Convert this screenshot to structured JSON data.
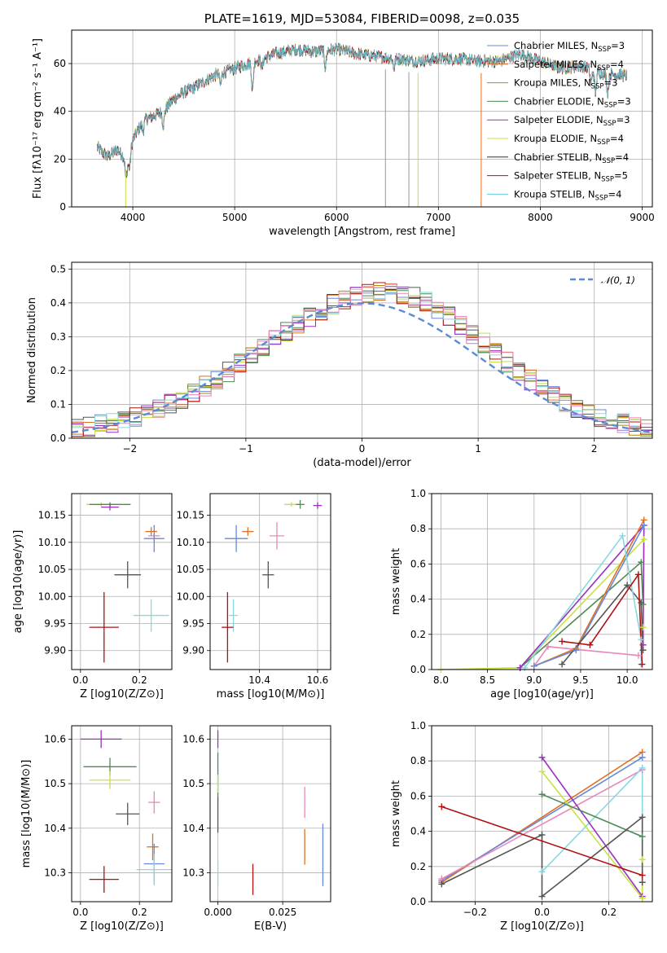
{
  "chart_data": [
    {
      "type": "line",
      "title": "PLATE=1619, MJD=53084, FIBERID=0098, z=0.035",
      "xlabel": "wavelength [Angstrom, rest frame]",
      "ylabel": "Flux [fλ10⁻¹⁷ erg cm⁻² s⁻¹ A⁻¹]",
      "xlim": [
        3400,
        9100
      ],
      "ylim": [
        0,
        74
      ],
      "xticks": [
        "4000",
        "5000",
        "6000",
        "7000",
        "8000",
        "9000"
      ],
      "yticks": [
        "0",
        "20",
        "40",
        "60"
      ],
      "legend_position": "upper-right",
      "series": [
        {
          "name": "Chabrier MILES, N_SSP=3",
          "color": "#6688dd"
        },
        {
          "name": "Salpeter MILES, N_SSP=4",
          "color": "#e07020"
        },
        {
          "name": "Kroupa MILES, N_SSP=3",
          "color": "#b8860b"
        },
        {
          "name": "Chabrier ELODIE, N_SSP=3",
          "color": "#4a8a55"
        },
        {
          "name": "Salpeter ELODIE, N_SSP=3",
          "color": "#9b30c0"
        },
        {
          "name": "Kroupa ELODIE, N_SSP=4",
          "color": "#c8e040"
        },
        {
          "name": "Chabrier STELIB, N_SSP=4",
          "color": "#333333"
        },
        {
          "name": "Salpeter STELIB, N_SSP=5",
          "color": "#b01010"
        },
        {
          "name": "Kroupa STELIB, N_SSP=4",
          "color": "#66ccdd"
        }
      ],
      "continuum_points": [
        [
          3650,
          25
        ],
        [
          3750,
          21
        ],
        [
          3850,
          24
        ],
        [
          3950,
          19
        ],
        [
          4000,
          28
        ],
        [
          4100,
          36
        ],
        [
          4200,
          38
        ],
        [
          4300,
          40
        ],
        [
          4400,
          45
        ],
        [
          4500,
          48
        ],
        [
          4600,
          50
        ],
        [
          4800,
          55
        ],
        [
          5000,
          58
        ],
        [
          5200,
          61
        ],
        [
          5400,
          64
        ],
        [
          5600,
          66
        ],
        [
          5800,
          65
        ],
        [
          6000,
          66
        ],
        [
          6200,
          64
        ],
        [
          6400,
          63
        ],
        [
          6600,
          62
        ],
        [
          6800,
          61
        ],
        [
          7000,
          62
        ],
        [
          7200,
          62
        ],
        [
          7400,
          61
        ],
        [
          7600,
          61
        ],
        [
          7800,
          64
        ],
        [
          8000,
          61
        ],
        [
          8200,
          58
        ],
        [
          8400,
          59
        ],
        [
          8600,
          56
        ],
        [
          8850,
          55
        ]
      ],
      "absorption_features": [
        [
          3934,
          8
        ],
        [
          3969,
          6
        ],
        [
          4101,
          4
        ],
        [
          4300,
          6
        ],
        [
          4861,
          5
        ],
        [
          5175,
          12
        ],
        [
          5270,
          4
        ],
        [
          5890,
          7
        ],
        [
          6563,
          4
        ],
        [
          8498,
          6
        ],
        [
          8542,
          9
        ],
        [
          8662,
          8
        ]
      ]
    },
    {
      "type": "line",
      "xlabel": "(data-model)/error",
      "ylabel": "Normed distribution",
      "xlim": [
        -2.5,
        2.5
      ],
      "ylim": [
        0,
        0.52
      ],
      "xticks": [
        "−2",
        "−1",
        "0",
        "1",
        "2"
      ],
      "yticks": [
        "0.0",
        "0.1",
        "0.2",
        "0.3",
        "0.4",
        "0.5"
      ],
      "legend": "𝒩(0, 1)",
      "legend_position": "upper-right",
      "bin_width": 0.1,
      "base_profile": {
        "center": 0.2,
        "left_sigma": 1.05,
        "right_sigma": 0.9,
        "peak": 0.42
      }
    },
    {
      "type": "scatter",
      "xlabel": "Z [log10(Z/Z⊙)]",
      "ylabel": "age  [log10(age/yr)]",
      "xlim": [
        -0.03,
        0.31
      ],
      "ylim": [
        9.865,
        10.19
      ],
      "xticks": [
        "0.0",
        "0.2"
      ],
      "yticks": [
        "9.90",
        "9.95",
        "10.00",
        "10.05",
        "10.10",
        "10.15"
      ],
      "points": [
        {
          "x": 0.07,
          "xerr": 0.05,
          "y": 10.17,
          "yerr": 0.004,
          "color": "#c8e040"
        },
        {
          "x": 0.1,
          "xerr": 0.07,
          "y": 10.17,
          "yerr": 0.004,
          "color": "#4a8a55"
        },
        {
          "x": 0.1,
          "xerr": 0.03,
          "y": 10.165,
          "yerr": 0.006,
          "color": "#9b30c0"
        },
        {
          "x": 0.24,
          "xerr": 0.02,
          "y": 10.12,
          "yerr": 0.008,
          "color": "#e07020"
        },
        {
          "x": 0.25,
          "xerr": 0.02,
          "y": 10.112,
          "yerr": 0.01,
          "color": "#e888b8"
        },
        {
          "x": 0.25,
          "xerr": 0.035,
          "y": 10.107,
          "yerr": 0.025,
          "color": "#6688dd"
        },
        {
          "x": 0.16,
          "xerr": 0.045,
          "y": 10.04,
          "yerr": 0.025,
          "color": "#555555"
        },
        {
          "x": 0.24,
          "xerr": 0.06,
          "y": 9.965,
          "yerr": 0.03,
          "color": "#88d8e0"
        },
        {
          "x": 0.08,
          "xerr": 0.05,
          "y": 9.943,
          "yerr": 0.065,
          "color": "#b01010"
        }
      ]
    },
    {
      "type": "scatter",
      "xlabel": "mass [log10(M/M⊙)]",
      "ylabel": "",
      "xlim": [
        10.23,
        10.645
      ],
      "ylim": [
        9.865,
        10.19
      ],
      "xticks": [
        "10.4",
        "10.6"
      ],
      "yticks": [
        "9.90",
        "9.95",
        "10.00",
        "10.05",
        "10.10",
        "10.15"
      ],
      "points": [
        {
          "x": 10.51,
          "xerr": 0.025,
          "y": 10.17,
          "yerr": 0.004,
          "color": "#c8e040"
        },
        {
          "x": 10.54,
          "xerr": 0.015,
          "y": 10.17,
          "yerr": 0.008,
          "color": "#4a8a55"
        },
        {
          "x": 10.6,
          "xerr": 0.015,
          "y": 10.168,
          "yerr": 0.006,
          "color": "#9b30c0"
        },
        {
          "x": 10.36,
          "xerr": 0.02,
          "y": 10.12,
          "yerr": 0.008,
          "color": "#e07020"
        },
        {
          "x": 10.46,
          "xerr": 0.025,
          "y": 10.112,
          "yerr": 0.025,
          "color": "#e888b8"
        },
        {
          "x": 10.32,
          "xerr": 0.04,
          "y": 10.107,
          "yerr": 0.025,
          "color": "#6688dd"
        },
        {
          "x": 10.43,
          "xerr": 0.02,
          "y": 10.04,
          "yerr": 0.025,
          "color": "#555555"
        },
        {
          "x": 10.31,
          "xerr": 0.015,
          "y": 9.965,
          "yerr": 0.03,
          "color": "#88d8e0"
        },
        {
          "x": 10.29,
          "xerr": 0.02,
          "y": 9.943,
          "yerr": 0.065,
          "color": "#b01010"
        }
      ]
    },
    {
      "type": "line",
      "xlabel": "age  [log10(age/yr)]",
      "ylabel": "mass weight",
      "xlim": [
        7.9,
        10.27
      ],
      "ylim": [
        0,
        1
      ],
      "xticks": [
        "8.0",
        "8.5",
        "9.0",
        "9.5",
        "10.0"
      ],
      "yticks": [
        "0.0",
        "0.2",
        "0.4",
        "0.6",
        "0.8",
        "1.0"
      ],
      "series": [
        {
          "color": "#c8e040",
          "points": [
            [
              8.0,
              0.0
            ],
            [
              8.85,
              0.01
            ],
            [
              10.18,
              0.74
            ],
            [
              10.17,
              0.24
            ]
          ]
        },
        {
          "color": "#4a8a55",
          "points": [
            [
              8.85,
              0.01
            ],
            [
              10.15,
              0.61
            ],
            [
              10.17,
              0.37
            ]
          ]
        },
        {
          "color": "#9b30c0",
          "points": [
            [
              8.85,
              0.01
            ],
            [
              10.18,
              0.82
            ],
            [
              10.17,
              0.14
            ]
          ]
        },
        {
          "color": "#e07020",
          "points": [
            [
              9.0,
              0.02
            ],
            [
              9.45,
              0.12
            ],
            [
              10.18,
              0.85
            ]
          ]
        },
        {
          "color": "#e888b8",
          "points": [
            [
              9.0,
              0.02
            ],
            [
              9.15,
              0.13
            ],
            [
              10.12,
              0.08
            ]
          ]
        },
        {
          "color": "#6688dd",
          "points": [
            [
              9.0,
              0.02
            ],
            [
              9.45,
              0.11
            ],
            [
              10.18,
              0.82
            ]
          ]
        },
        {
          "color": "#555555",
          "points": [
            [
              9.3,
              0.03
            ],
            [
              10.0,
              0.48
            ],
            [
              10.15,
              0.38
            ],
            [
              10.17,
              0.11
            ]
          ]
        },
        {
          "color": "#88d8e0",
          "points": [
            [
              8.9,
              0.01
            ],
            [
              9.95,
              0.76
            ],
            [
              10.15,
              0.17
            ],
            [
              10.15,
              0.03
            ]
          ]
        },
        {
          "color": "#b01010",
          "points": [
            [
              9.3,
              0.16
            ],
            [
              9.6,
              0.14
            ],
            [
              10.12,
              0.54
            ],
            [
              10.16,
              0.03
            ]
          ]
        }
      ]
    },
    {
      "type": "scatter",
      "xlabel": "Z [log10(Z/Z⊙)]",
      "ylabel": "mass [log10(M/M⊙)]",
      "xlim": [
        -0.03,
        0.31
      ],
      "ylim": [
        10.235,
        10.63
      ],
      "xticks": [
        "0.0",
        "0.2"
      ],
      "yticks": [
        "10.3",
        "10.4",
        "10.5",
        "10.6"
      ],
      "points": [
        {
          "x": 0.07,
          "xerr": 0.07,
          "y": 10.6,
          "yerr": 0.02,
          "color": "#9b30c0"
        },
        {
          "x": 0.1,
          "xerr": 0.09,
          "y": 10.538,
          "yerr": 0.02,
          "color": "#4a8a55"
        },
        {
          "x": 0.1,
          "xerr": 0.07,
          "y": 10.508,
          "yerr": 0.02,
          "color": "#c8e040"
        },
        {
          "x": 0.16,
          "xerr": 0.04,
          "y": 10.432,
          "yerr": 0.025,
          "color": "#555555"
        },
        {
          "x": 0.25,
          "xerr": 0.02,
          "y": 10.458,
          "yerr": 0.025,
          "color": "#e888b8"
        },
        {
          "x": 0.245,
          "xerr": 0.02,
          "y": 10.358,
          "yerr": 0.03,
          "color": "#e07020"
        },
        {
          "x": 0.25,
          "xerr": 0.035,
          "y": 10.32,
          "yerr": 0.045,
          "color": "#6688dd"
        },
        {
          "x": 0.25,
          "xerr": 0.06,
          "y": 10.307,
          "yerr": 0.035,
          "color": "#88d8e0"
        },
        {
          "x": 0.08,
          "xerr": 0.05,
          "y": 10.285,
          "yerr": 0.03,
          "color": "#b01010"
        }
      ]
    },
    {
      "type": "scatter",
      "xlabel": "E(B-V)",
      "ylabel": "",
      "xlim": [
        -0.003,
        0.0435
      ],
      "ylim": [
        10.235,
        10.63
      ],
      "xticks": [
        "0.000",
        "0.025"
      ],
      "yticks": [
        "10.3",
        "10.4",
        "10.5",
        "10.6"
      ],
      "points": [
        {
          "x": 0.0,
          "y": 10.6,
          "yerr": 0.02,
          "color": "#9b30c0"
        },
        {
          "x": 0.0,
          "y": 10.52,
          "yerr": 0.05,
          "color": "#4a8a55"
        },
        {
          "x": 0.0,
          "y": 10.5,
          "yerr": 0.02,
          "color": "#c8e040"
        },
        {
          "x": 0.0,
          "y": 10.43,
          "yerr": 0.04,
          "color": "#555555"
        },
        {
          "x": 0.0,
          "y": 10.3,
          "yerr": 0.03,
          "color": "#88d8e0"
        },
        {
          "x": 0.0135,
          "y": 10.285,
          "yerr": 0.035,
          "color": "#b01010"
        },
        {
          "x": 0.0335,
          "y": 10.458,
          "yerr": 0.035,
          "color": "#e888b8"
        },
        {
          "x": 0.0335,
          "y": 10.358,
          "yerr": 0.04,
          "color": "#e07020"
        },
        {
          "x": 0.0405,
          "y": 10.34,
          "yerr": 0.07,
          "color": "#6688dd"
        }
      ]
    },
    {
      "type": "line",
      "xlabel": "Z [log10(Z/Z⊙)]",
      "ylabel": "mass weight",
      "xlim": [
        -0.33,
        0.33
      ],
      "ylim": [
        0,
        1
      ],
      "xticks": [
        "−0.2",
        "0.0",
        "0.2"
      ],
      "yticks": [
        "0.0",
        "0.2",
        "0.4",
        "0.6",
        "0.8",
        "1.0"
      ],
      "series": [
        {
          "color": "#e07020",
          "points": [
            [
              -0.3,
              0.11
            ],
            [
              0.3,
              0.85
            ]
          ]
        },
        {
          "color": "#6688dd",
          "points": [
            [
              -0.3,
              0.12
            ],
            [
              0.3,
              0.82
            ]
          ]
        },
        {
          "color": "#e888b8",
          "points": [
            [
              -0.3,
              0.13
            ],
            [
              0.3,
              0.75
            ]
          ]
        },
        {
          "color": "#88d8e0",
          "points": [
            [
              0.0,
              0.17
            ],
            [
              0.3,
              0.76
            ],
            [
              0.3,
              0.02
            ]
          ]
        },
        {
          "color": "#9b30c0",
          "points": [
            [
              0.0,
              0.82
            ],
            [
              0.3,
              0.03
            ]
          ]
        },
        {
          "color": "#c8e040",
          "points": [
            [
              0.0,
              0.74
            ],
            [
              0.3,
              0.02
            ],
            [
              0.3,
              0.24
            ]
          ]
        },
        {
          "color": "#4a8a55",
          "points": [
            [
              0.0,
              0.61
            ],
            [
              0.3,
              0.37
            ]
          ]
        },
        {
          "color": "#555555",
          "points": [
            [
              -0.3,
              0.1
            ],
            [
              0.0,
              0.38
            ],
            [
              0.0,
              0.03
            ],
            [
              0.3,
              0.48
            ],
            [
              0.3,
              0.11
            ]
          ]
        },
        {
          "color": "#b01010",
          "points": [
            [
              -0.3,
              0.54
            ],
            [
              0.3,
              0.15
            ]
          ]
        }
      ]
    }
  ]
}
